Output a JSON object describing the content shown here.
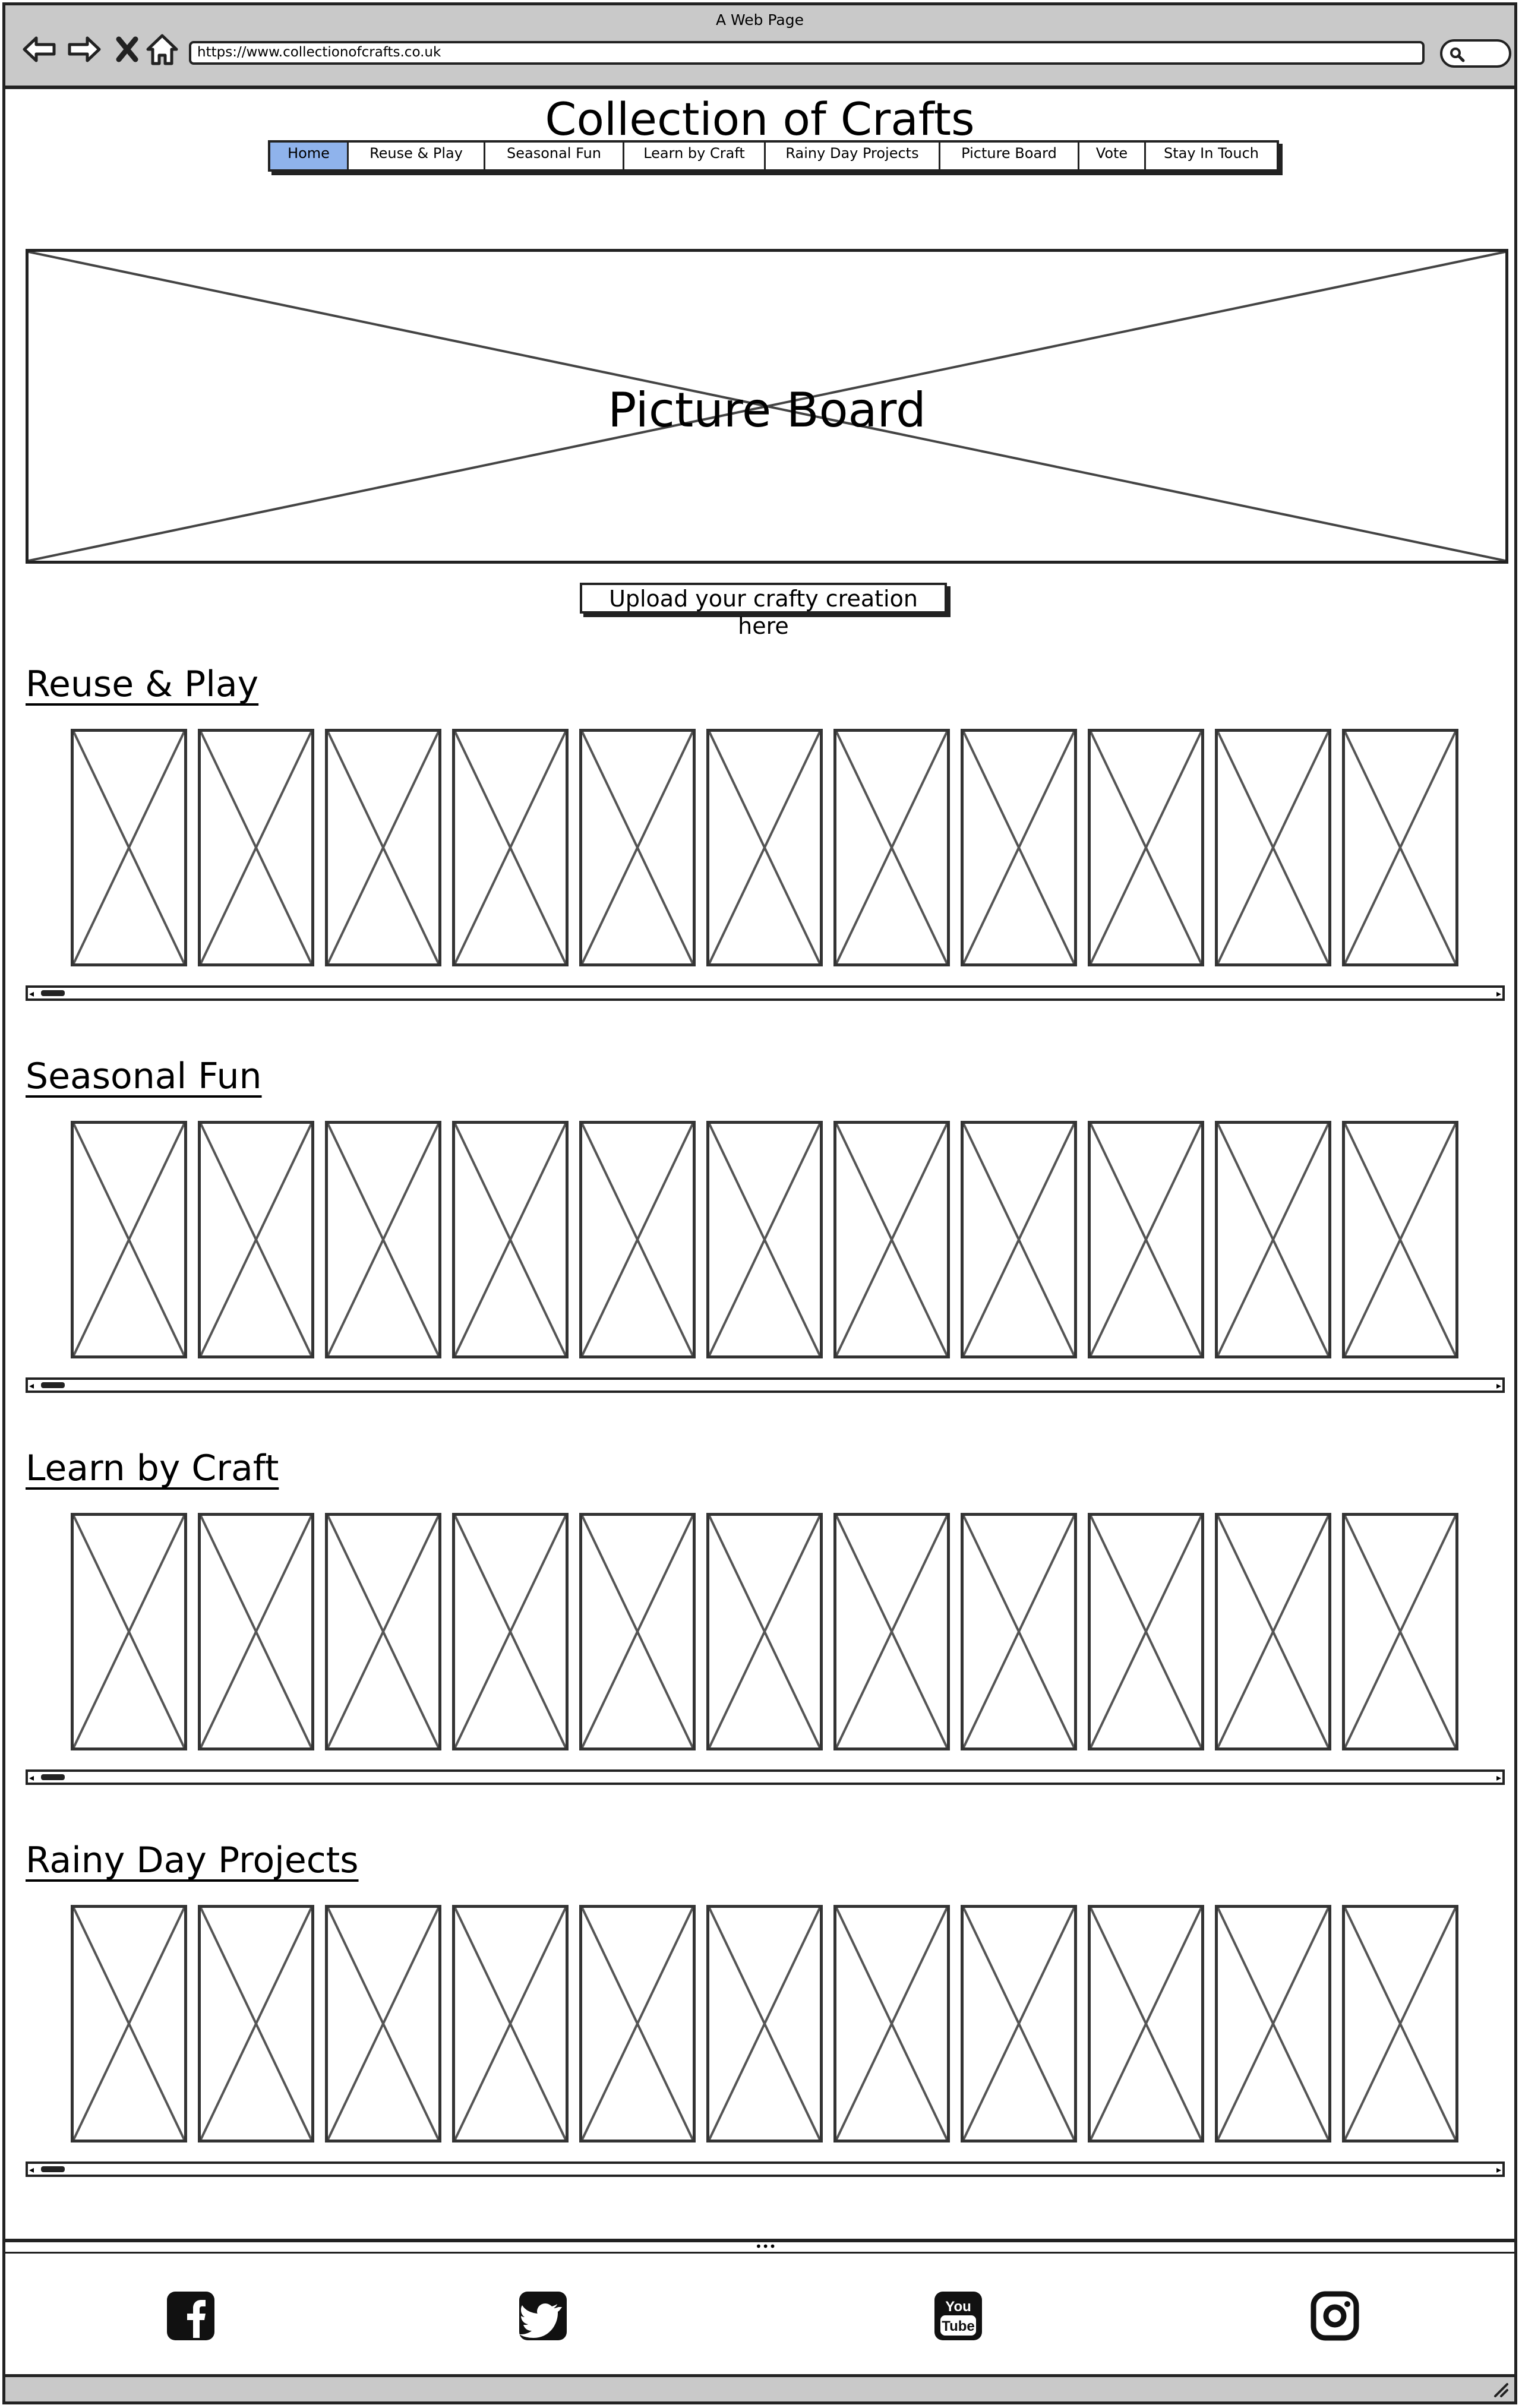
{
  "browser": {
    "window_title": "A Web Page",
    "url": "https://www.collectionofcrafts.co.uk",
    "nav_icons": [
      "back-icon",
      "forward-icon",
      "close-icon",
      "home-icon"
    ],
    "search_icon": "search-icon"
  },
  "site": {
    "title": "Collection of Crafts",
    "menu": [
      {
        "label": "Home",
        "active": true
      },
      {
        "label": "Reuse & Play",
        "active": false
      },
      {
        "label": "Seasonal Fun",
        "active": false
      },
      {
        "label": "Learn by Craft",
        "active": false
      },
      {
        "label": "Rainy Day Projects",
        "active": false
      },
      {
        "label": "Picture Board",
        "active": false
      },
      {
        "label": "Vote",
        "active": false
      },
      {
        "label": "Stay In Touch",
        "active": false
      }
    ],
    "active_color": "#8fb3ec"
  },
  "hero": {
    "label": "Picture Board"
  },
  "upload_button": {
    "label": "Upload your crafty creation here"
  },
  "sections": [
    {
      "title": "Reuse & Play",
      "thumbnail_count": 11
    },
    {
      "title": "Seasonal Fun",
      "thumbnail_count": 11
    },
    {
      "title": "Learn by Craft",
      "thumbnail_count": 11
    },
    {
      "title": "Rainy Day Projects",
      "thumbnail_count": 11
    }
  ],
  "footer": {
    "social_icons": [
      "facebook-icon",
      "twitter-icon",
      "youtube-icon",
      "instagram-icon"
    ]
  }
}
